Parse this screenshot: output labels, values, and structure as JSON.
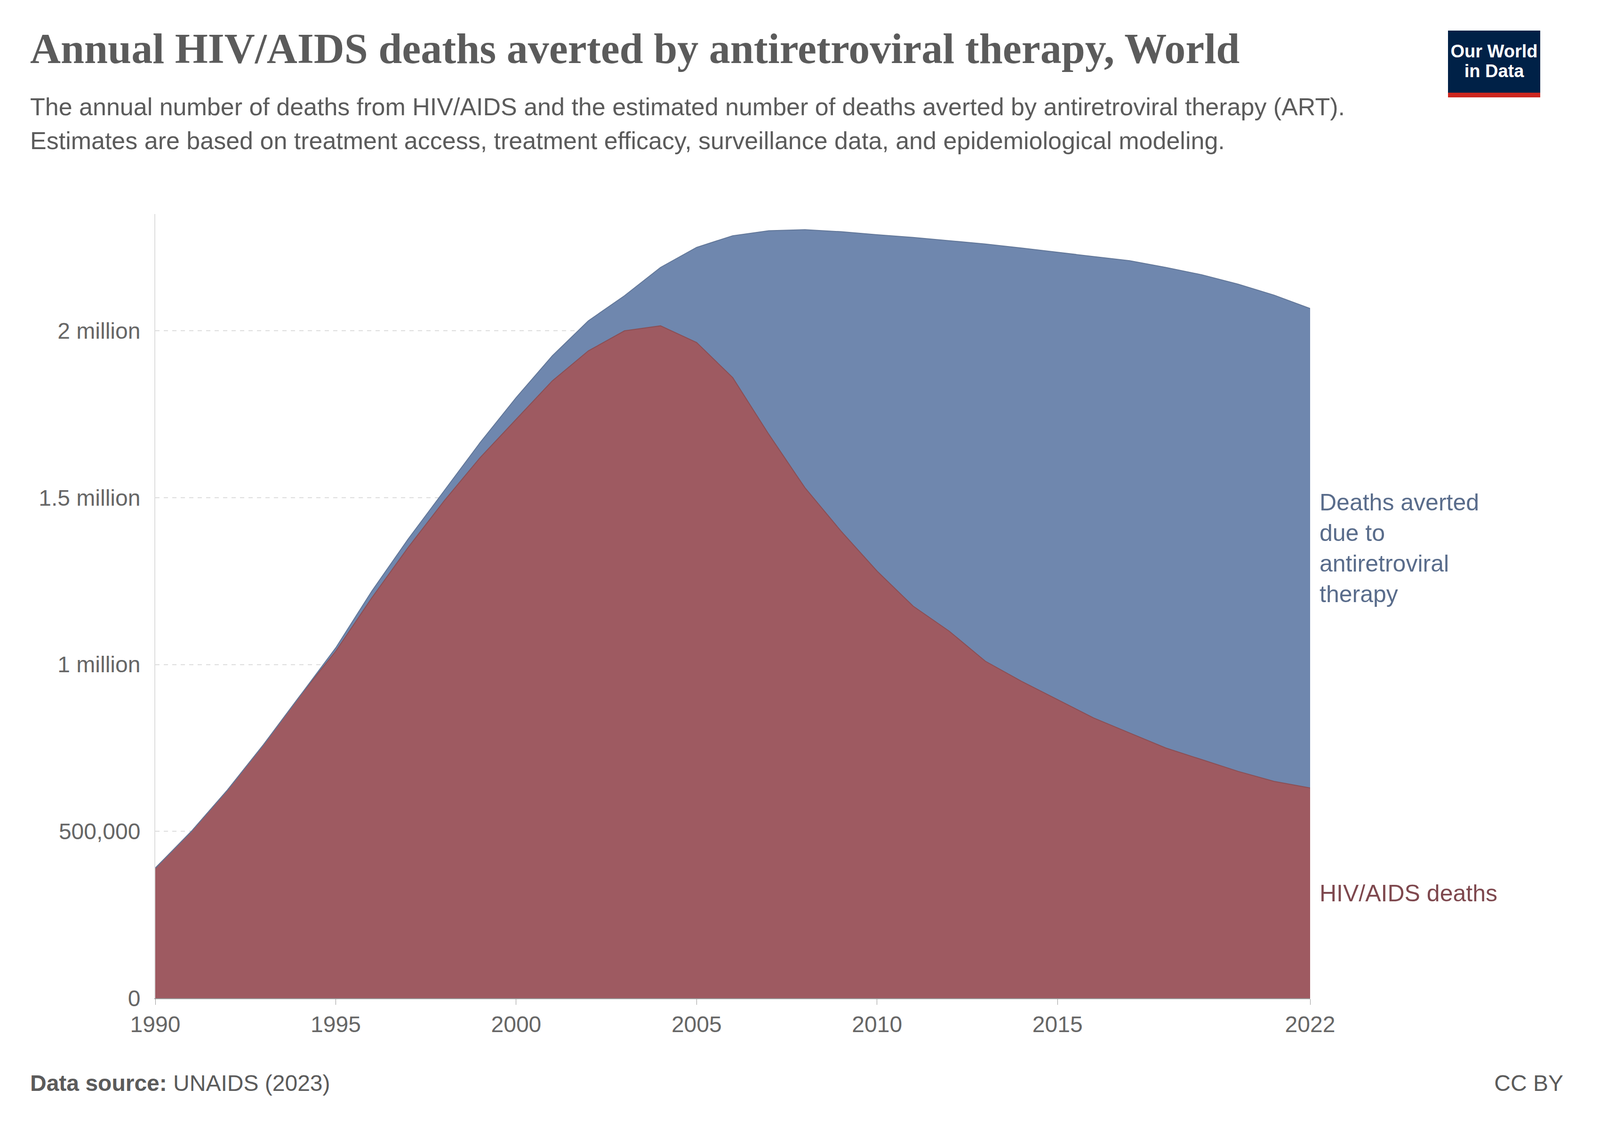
{
  "chart_data": {
    "type": "area",
    "stacked": true,
    "title": "Annual HIV/AIDS deaths averted by antiretroviral therapy, World",
    "subtitle": "The annual number of deaths from HIV/AIDS and the estimated number of deaths averted by antiretroviral therapy (ART). Estimates are based on treatment access, treatment efficacy, surveillance data, and epidemiological modeling.",
    "source_label": "Data source:",
    "source": "UNAIDS (2023)",
    "license": "CC BY",
    "logo": [
      "Our World",
      "in Data"
    ],
    "x": [
      1990,
      1991,
      1992,
      1993,
      1994,
      1995,
      1996,
      1997,
      1998,
      1999,
      2000,
      2001,
      2002,
      2003,
      2004,
      2005,
      2006,
      2007,
      2008,
      2009,
      2010,
      2011,
      2012,
      2013,
      2014,
      2015,
      2016,
      2017,
      2018,
      2019,
      2020,
      2021,
      2022
    ],
    "series": [
      {
        "name": "HIV/AIDS deaths",
        "color": "#9e5a61",
        "values": [
          390000,
          500000,
          624000,
          760000,
          905000,
          1040000,
          1200000,
          1350000,
          1490000,
          1620000,
          1735000,
          1850000,
          1940000,
          2000000,
          2015000,
          1965000,
          1860000,
          1690000,
          1530000,
          1400000,
          1280000,
          1175000,
          1100000,
          1010000,
          950000,
          895000,
          840000,
          795000,
          750000,
          715000,
          680000,
          650000,
          630000
        ]
      },
      {
        "name": "Deaths averted due to antiretroviral therapy",
        "color": "#6f87ae",
        "values": [
          0,
          0,
          0,
          0,
          0,
          10000,
          20000,
          25000,
          30000,
          45000,
          65000,
          75000,
          90000,
          105000,
          175000,
          285000,
          425000,
          610000,
          773000,
          897000,
          1008000,
          1105000,
          1170000,
          1250000,
          1298000,
          1340000,
          1383000,
          1415000,
          1440000,
          1453000,
          1460000,
          1457000,
          1437000
        ]
      }
    ],
    "xlim": [
      1990,
      2022
    ],
    "xticks": [
      1990,
      1995,
      2000,
      2005,
      2010,
      2015,
      2022
    ],
    "ylim": [
      0,
      2350000
    ],
    "yticks": [
      0,
      {
        "value": 500000,
        "label": "500,000"
      },
      {
        "value": 1000000,
        "label": "1 million"
      },
      {
        "value": 1500000,
        "label": "1.5 million"
      },
      {
        "value": 2000000,
        "label": "2 million"
      }
    ],
    "grid": true
  }
}
